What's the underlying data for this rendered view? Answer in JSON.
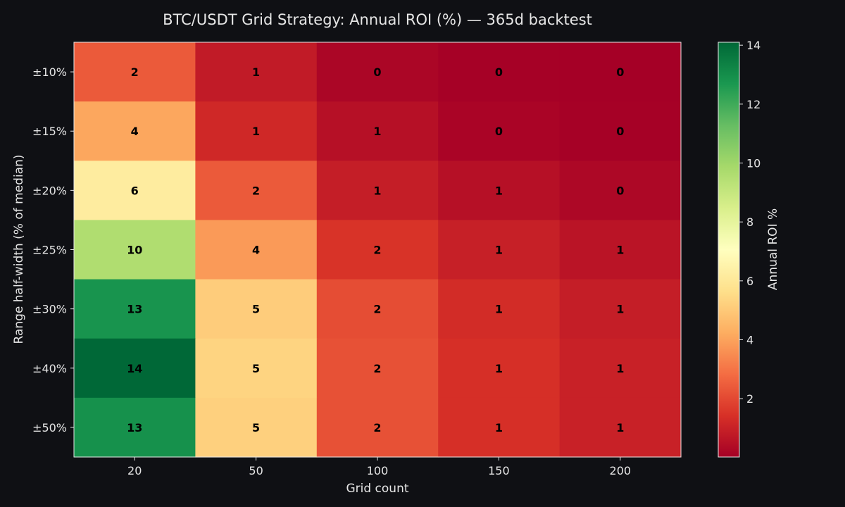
{
  "chart_data": {
    "type": "heatmap",
    "title": "BTC/USDT Grid Strategy: Annual ROI (%) — 365d backtest",
    "xlabel": "Grid count",
    "ylabel": "Range half-width (% of median)",
    "x_categories": [
      "20",
      "50",
      "100",
      "150",
      "200"
    ],
    "y_categories": [
      "±10%",
      "±15%",
      "±20%",
      "±25%",
      "±30%",
      "±40%",
      "±50%"
    ],
    "values": [
      [
        2.4,
        0.8,
        0.2,
        0.05,
        0.02
      ],
      [
        4.1,
        1.2,
        0.5,
        0.15,
        0.05
      ],
      [
        6.2,
        2.4,
        0.9,
        0.5,
        0.25
      ],
      [
        9.6,
        3.8,
        1.5,
        0.95,
        0.6
      ],
      [
        12.8,
        5.1,
        2.1,
        1.3,
        0.9
      ],
      [
        14.1,
        5.3,
        2.2,
        1.4,
        1.0
      ],
      [
        12.9,
        5.2,
        2.2,
        1.4,
        1.0
      ]
    ],
    "cell_labels": [
      [
        "2",
        "1",
        "0",
        "0",
        "0"
      ],
      [
        "4",
        "1",
        "1",
        "0",
        "0"
      ],
      [
        "6",
        "2",
        "1",
        "1",
        "0"
      ],
      [
        "10",
        "4",
        "2",
        "1",
        "1"
      ],
      [
        "13",
        "5",
        "2",
        "1",
        "1"
      ],
      [
        "14",
        "5",
        "2",
        "1",
        "1"
      ],
      [
        "13",
        "5",
        "2",
        "1",
        "1"
      ]
    ],
    "colormap": "RdYlGn",
    "color_range": [
      0.02,
      14.1
    ],
    "colorbar": {
      "label": "Annual ROI %",
      "ticks": [
        2,
        4,
        6,
        8,
        10,
        12,
        14
      ]
    },
    "colors": {
      "background": "#0f1014",
      "text": "#e6e6e6",
      "cell_text": "#000000",
      "frame": "#e6e6e6"
    }
  }
}
